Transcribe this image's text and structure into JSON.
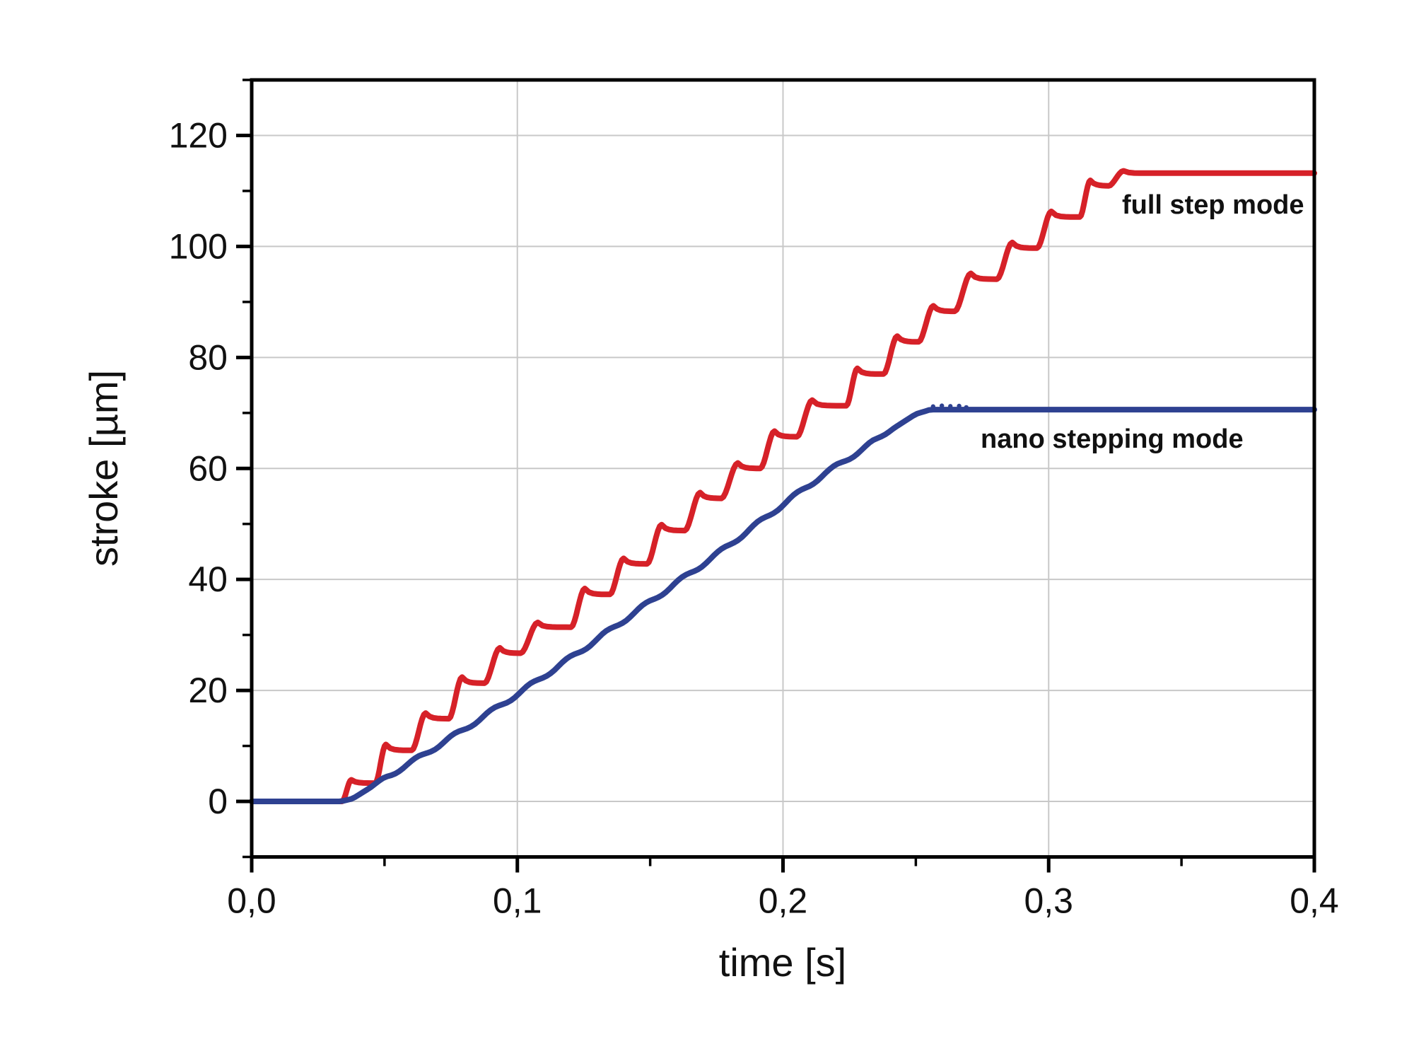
{
  "chart_data": {
    "type": "line",
    "title": "",
    "xlabel": "time [s]",
    "ylabel": "stroke [µm]",
    "xlim": [
      0.0,
      0.4
    ],
    "ylim": [
      -10,
      130
    ],
    "grid": "major-gridlines-on",
    "legend_position": "inline-labels",
    "grid_color": "#c8c8c8",
    "axis_color": "#000000",
    "background_color": "#ffffff",
    "x_major_ticks": [
      {
        "value": 0.0,
        "label": "0,0"
      },
      {
        "value": 0.1,
        "label": "0,1"
      },
      {
        "value": 0.2,
        "label": "0,2"
      },
      {
        "value": 0.3,
        "label": "0,3"
      },
      {
        "value": 0.4,
        "label": "0,4"
      }
    ],
    "x_minor_ticks": [
      0.05,
      0.15,
      0.25,
      0.35
    ],
    "y_major_ticks": [
      {
        "value": 0,
        "label": "0"
      },
      {
        "value": 20,
        "label": "20"
      },
      {
        "value": 40,
        "label": "40"
      },
      {
        "value": 60,
        "label": "60"
      },
      {
        "value": 80,
        "label": "80"
      },
      {
        "value": 100,
        "label": "100"
      },
      {
        "value": 120,
        "label": "120"
      }
    ],
    "y_minor_ticks": [
      -10,
      10,
      30,
      50,
      70,
      90,
      110,
      130
    ],
    "x_gridlines": [
      0.1,
      0.2,
      0.3
    ],
    "y_gridlines": [
      0,
      20,
      40,
      60,
      80,
      100,
      120
    ],
    "series": [
      {
        "name": "full step mode",
        "label": "full step mode",
        "color": "#d62128",
        "style": "staircase-with-overshoot",
        "label_anchor": {
          "t": 0.3276,
          "v": 105.9
        },
        "plateaus": [
          [
            0.0,
            0.034,
            0.0
          ],
          [
            0.0375,
            0.0465,
            3.3
          ],
          [
            0.0505,
            0.0602,
            9.2
          ],
          [
            0.0655,
            0.0742,
            14.9
          ],
          [
            0.0792,
            0.0876,
            21.3
          ],
          [
            0.0934,
            0.1012,
            26.7
          ],
          [
            0.1077,
            0.1202,
            31.4
          ],
          [
            0.1254,
            0.1348,
            37.3
          ],
          [
            0.14,
            0.1488,
            42.8
          ],
          [
            0.1543,
            0.163,
            48.8
          ],
          [
            0.1688,
            0.1768,
            54.6
          ],
          [
            0.183,
            0.1914,
            60.0
          ],
          [
            0.1968,
            0.2052,
            65.7
          ],
          [
            0.211,
            0.2238,
            71.3
          ],
          [
            0.228,
            0.2378,
            77.0
          ],
          [
            0.243,
            0.251,
            82.8
          ],
          [
            0.2566,
            0.2646,
            88.3
          ],
          [
            0.2707,
            0.2805,
            94.1
          ],
          [
            0.2863,
            0.2956,
            99.7
          ],
          [
            0.301,
            0.3117,
            105.3
          ],
          [
            0.3157,
            0.3225,
            110.9
          ],
          [
            0.3282,
            0.4,
            113.2
          ]
        ]
      },
      {
        "name": "nano stepping mode",
        "label": "nano stepping mode",
        "color": "#2e4191",
        "style": "smooth-ramp",
        "label_anchor": {
          "t": 0.2744,
          "v": 63.7
        },
        "points": [
          [
            0.0,
            0.0
          ],
          [
            0.0335,
            0.0
          ],
          [
            0.038,
            0.5
          ],
          [
            0.045,
            2.6
          ],
          [
            0.05,
            4.2
          ],
          [
            0.06,
            7.0
          ],
          [
            0.08,
            13.0
          ],
          [
            0.1,
            19.3
          ],
          [
            0.125,
            27.5
          ],
          [
            0.15,
            36.0
          ],
          [
            0.175,
            44.5
          ],
          [
            0.2,
            53.5
          ],
          [
            0.215,
            58.8
          ],
          [
            0.23,
            63.5
          ],
          [
            0.2425,
            67.5
          ],
          [
            0.25,
            69.8
          ],
          [
            0.2555,
            70.6
          ],
          [
            0.4,
            70.6
          ]
        ],
        "ripple": {
          "amplitude": 0.35,
          "period": 0.0143,
          "from": 0.044,
          "to": 0.242
        },
        "dots": [
          [
            0.2565,
            71.15
          ],
          [
            0.2598,
            71.3
          ],
          [
            0.263,
            71.2
          ],
          [
            0.2663,
            71.25
          ],
          [
            0.269,
            71.0
          ]
        ]
      }
    ]
  }
}
